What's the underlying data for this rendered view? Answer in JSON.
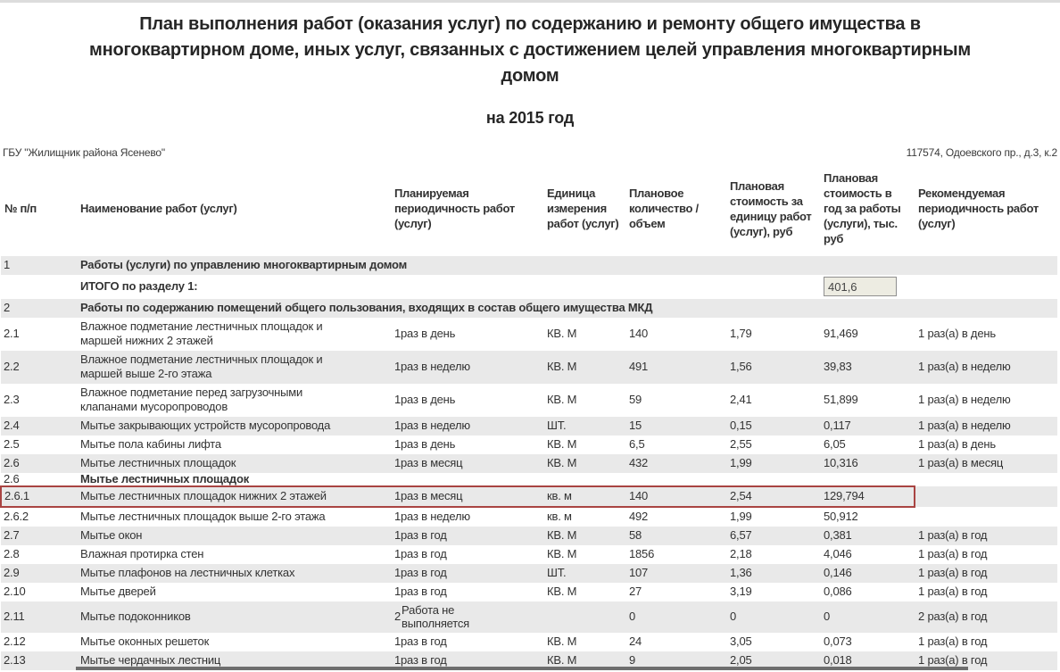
{
  "page": {
    "title": "План выполнения работ (оказания услуг) по содержанию и ремонту общего имущества в многоквартирном доме, иных услуг, связанных с достижением целей управления многоквартирным домом",
    "subtitle": "на 2015 год",
    "organization": "ГБУ \"Жилищник района Ясенево\"",
    "address": "117574, Одоевского пр., д.3, к.2"
  },
  "colors": {
    "highlight_border": "#a94442",
    "row_shade": "#e9e9e9",
    "input_background": "#edece2"
  },
  "table": {
    "columns": [
      {
        "key": "num",
        "label": "№ п/п"
      },
      {
        "key": "name",
        "label": "Наименование работ (услуг)"
      },
      {
        "key": "periodicity",
        "label": "Планируемая периодичность работ (услуг)"
      },
      {
        "key": "unit",
        "label": "Единица измерения работ (услуг)"
      },
      {
        "key": "qty",
        "label": "Плановое количество / объем"
      },
      {
        "key": "unit_cost",
        "label": "Плановая стоимость за единицу работ (услуг), руб"
      },
      {
        "key": "year_cost",
        "label": "Плановая стоимость в год за работы (услуги), тыс. руб"
      },
      {
        "key": "recommended",
        "label": "Рекомендуемая периодичность работ (услуг)"
      }
    ],
    "rows": [
      {
        "type": "section",
        "num": "1",
        "name": "Работы (услуги) по управлению многоквартирным домом",
        "shaded": true
      },
      {
        "type": "total",
        "num": "",
        "name": "ИТОГО по разделу 1:",
        "total_value": "401,6",
        "shaded": false
      },
      {
        "type": "section",
        "num": "2",
        "name": "Работы по содержанию помещений общего пользования, входящих в состав общего имущества МКД",
        "shaded": true
      },
      {
        "type": "data",
        "num": "2.1",
        "name": "Влажное подметание лестничных площадок и маршей нижних 2 этажей",
        "periodicity": "1раз в день",
        "unit": "КВ. М",
        "qty": "140",
        "unit_cost": "1,79",
        "year_cost": "91,469",
        "recommended": "1 раз(а) в день",
        "shaded": false
      },
      {
        "type": "data",
        "num": "2.2",
        "name": "Влажное подметание лестничных площадок и маршей выше 2-го этажа",
        "periodicity": "1раз в неделю",
        "unit": "КВ. М",
        "qty": "491",
        "unit_cost": "1,56",
        "year_cost": "39,83",
        "recommended": "1 раз(а) в неделю",
        "shaded": true
      },
      {
        "type": "data",
        "num": "2.3",
        "name": "Влажное подметание перед загрузочными клапанами мусоропроводов",
        "periodicity": "1раз в день",
        "unit": "КВ. М",
        "qty": "59",
        "unit_cost": "2,41",
        "year_cost": "51,899",
        "recommended": "1 раз(а) в неделю",
        "shaded": false
      },
      {
        "type": "data",
        "num": "2.4",
        "name": "Мытье закрывающих устройств мусоропровода",
        "periodicity": "1раз в неделю",
        "unit": "ШТ.",
        "qty": "15",
        "unit_cost": "0,15",
        "year_cost": "0,117",
        "recommended": "1 раз(а) в неделю",
        "shaded": true
      },
      {
        "type": "data",
        "num": "2.5",
        "name": "Мытье пола кабины лифта",
        "periodicity": "1раз в день",
        "unit": "КВ. М",
        "qty": "6,5",
        "unit_cost": "2,55",
        "year_cost": "6,05",
        "recommended": "1 раз(а) в день",
        "shaded": false
      },
      {
        "type": "data",
        "num": "2.6",
        "name": "Мытье лестничных площадок",
        "periodicity": "1раз в месяц",
        "unit": "КВ. М",
        "qty": "432",
        "unit_cost": "1,99",
        "year_cost": "10,316",
        "recommended": "1 раз(а) в месяц",
        "shaded": true
      },
      {
        "type": "section",
        "num": "2.6",
        "name": "Мытье лестничных площадок",
        "shaded": false,
        "compact": true
      },
      {
        "type": "data",
        "num": "2.6.1",
        "name": "Мытье лестничных площадок нижних 2 этажей",
        "periodicity": "1раз в месяц",
        "unit": "кв. м",
        "qty": "140",
        "unit_cost": "2,54",
        "year_cost": "129,794",
        "recommended": "",
        "shaded": true,
        "highlight": true
      },
      {
        "type": "data",
        "num": "2.6.2",
        "name": "Мытье лестничных площадок выше 2-го этажа",
        "periodicity": "1раз в неделю",
        "unit": "кв. м",
        "qty": "492",
        "unit_cost": "1,99",
        "year_cost": "50,912",
        "recommended": "",
        "shaded": false
      },
      {
        "type": "data",
        "num": "2.7",
        "name": "Мытье окон",
        "periodicity": "1раз в год",
        "unit": "КВ. М",
        "qty": "58",
        "unit_cost": "6,57",
        "year_cost": "0,381",
        "recommended": "1 раз(а) в год",
        "shaded": true
      },
      {
        "type": "data",
        "num": "2.8",
        "name": "Влажная протирка стен",
        "periodicity": "1раз в год",
        "unit": "КВ. М",
        "qty": "1856",
        "unit_cost": "2,18",
        "year_cost": "4,046",
        "recommended": "1 раз(а) в год",
        "shaded": false
      },
      {
        "type": "data",
        "num": "2.9",
        "name": "Мытье плафонов на лестничных клетках",
        "periodicity": "1раз в год",
        "unit": "ШТ.",
        "qty": "107",
        "unit_cost": "1,36",
        "year_cost": "0,146",
        "recommended": "1 раз(а) в год",
        "shaded": true
      },
      {
        "type": "data",
        "num": "2.10",
        "name": "Мытье дверей",
        "periodicity": "1раз в год",
        "unit": "КВ. М",
        "qty": "27",
        "unit_cost": "3,19",
        "year_cost": "0,086",
        "recommended": "1 раз(а) в год",
        "shaded": false
      },
      {
        "type": "data",
        "num": "2.11",
        "name": "Мытье подоконников",
        "periodicity": "",
        "periodicity_prefix": "2",
        "periodicity_note": "Работа не выполняется",
        "unit": "",
        "qty": "0",
        "unit_cost": "0",
        "year_cost": "0",
        "recommended": "2 раз(а) в год",
        "shaded": true
      },
      {
        "type": "data",
        "num": "2.12",
        "name": "Мытье оконных решеток",
        "periodicity": "1раз в год",
        "unit": "КВ. М",
        "qty": "24",
        "unit_cost": "3,05",
        "year_cost": "0,073",
        "recommended": "1 раз(а) в год",
        "shaded": false
      },
      {
        "type": "data",
        "num": "2.13",
        "name": "Мытье чердачных лестниц",
        "periodicity": "1раз в год",
        "unit": "КВ. М",
        "qty": "9",
        "unit_cost": "2,05",
        "year_cost": "0,018",
        "recommended": "1 раз(а) в год",
        "shaded": true
      }
    ]
  }
}
